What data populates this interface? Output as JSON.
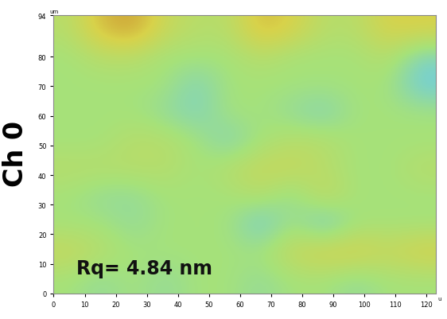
{
  "chart_data": {
    "type": "heatmap",
    "ylabel": "Ch 0",
    "annotations": [
      "Rq= 4.84 nm"
    ],
    "x_unit": "u",
    "y_unit": "um",
    "xlim": [
      0,
      123
    ],
    "ylim": [
      0,
      94
    ],
    "xticks": [
      0,
      10,
      20,
      30,
      40,
      50,
      60,
      70,
      80,
      90,
      100,
      110,
      120
    ],
    "yticks": [
      0,
      10,
      20,
      30,
      40,
      50,
      60,
      70,
      80,
      94
    ],
    "clim": [
      -6,
      6
    ],
    "cells": [
      [
        1,
        4,
        5,
        2,
        1,
        1,
        4,
        3,
        1,
        1,
        3,
        3
      ],
      [
        0,
        1,
        1,
        0,
        0,
        0,
        1,
        0,
        0,
        0,
        1,
        -2
      ],
      [
        0,
        0,
        0,
        0,
        -2,
        0,
        0,
        0,
        0,
        0,
        0,
        -3
      ],
      [
        0,
        0,
        0,
        -1,
        -2,
        0,
        0,
        -1,
        -2,
        0,
        0,
        0
      ],
      [
        0,
        0,
        1,
        1,
        0,
        -2,
        0,
        1,
        1,
        0,
        0,
        0
      ],
      [
        1,
        1,
        1,
        1,
        0,
        1,
        2,
        2,
        1,
        0,
        0,
        1
      ],
      [
        0,
        -1,
        -1,
        0,
        0,
        0,
        1,
        -1,
        2,
        0,
        0,
        0
      ],
      [
        0,
        0,
        -1,
        0,
        0,
        0,
        -3,
        0,
        -3,
        0,
        0,
        0
      ],
      [
        2,
        1,
        0,
        0,
        0,
        0,
        0,
        2,
        3,
        3,
        2,
        3
      ],
      [
        0,
        -1,
        0,
        -1,
        0,
        0,
        -1,
        0,
        0,
        -1,
        0,
        0
      ]
    ],
    "grid": false
  }
}
